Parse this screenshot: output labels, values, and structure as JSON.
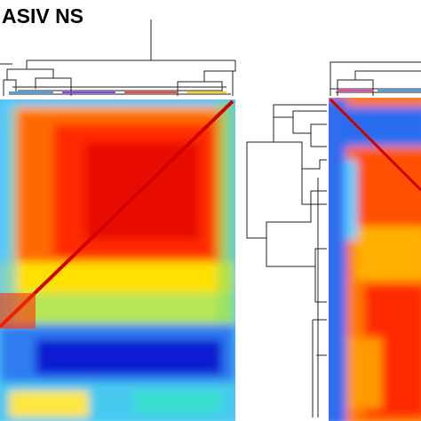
{
  "title": "ASIV NS"
}
